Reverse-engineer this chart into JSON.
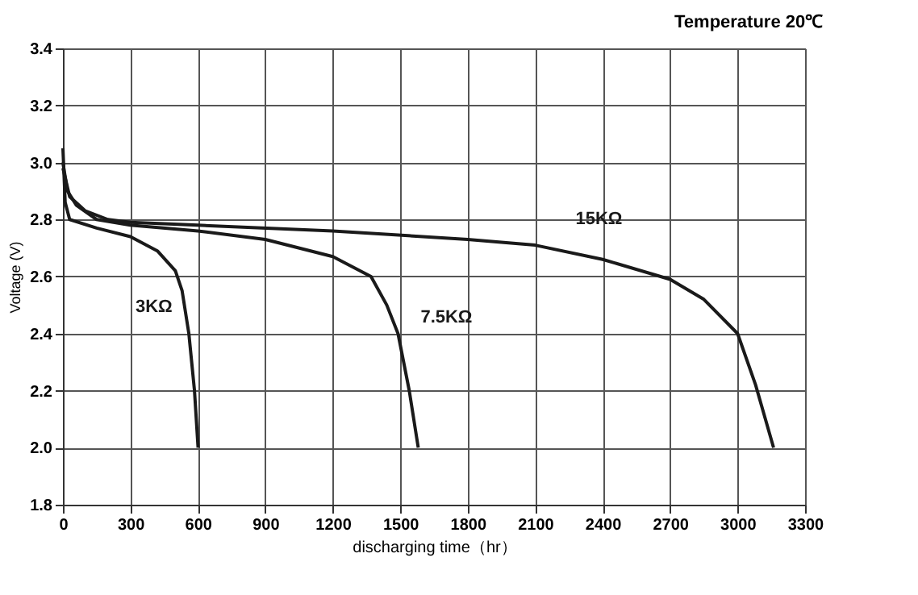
{
  "chart_data": {
    "type": "line",
    "title": "Temperature 20℃",
    "xlabel": "discharging time（hr）",
    "ylabel": "Voltage (V)",
    "xlim": [
      0,
      3300
    ],
    "xticks": [
      0,
      300,
      600,
      900,
      1200,
      1500,
      1800,
      2100,
      2400,
      2700,
      3000,
      3300
    ],
    "ylim": [
      1.8,
      3.4
    ],
    "yticks": [
      1.8,
      {
        "value": 2.0,
        "label": "2.0"
      },
      2.2,
      2.4,
      2.6,
      2.8,
      {
        "value": 3.0,
        "label": "3.0"
      },
      3.2,
      3.4
    ],
    "grid": true,
    "legend": false,
    "marker": "none",
    "line_style": "solid",
    "series": [
      {
        "name": "3KΩ",
        "color": "#1a1a1a",
        "x": [
          0,
          10,
          30,
          150,
          300,
          420,
          500,
          530,
          560,
          585,
          601
        ],
        "values": [
          3.05,
          2.86,
          2.8,
          2.77,
          2.74,
          2.69,
          2.62,
          2.55,
          2.4,
          2.2,
          2.0
        ]
      },
      {
        "name": "7.5KΩ",
        "color": "#1a1a1a",
        "x": [
          0,
          20,
          60,
          150,
          300,
          600,
          900,
          1200,
          1370,
          1440,
          1490,
          1540,
          1580
        ],
        "values": [
          3.0,
          2.9,
          2.85,
          2.8,
          2.78,
          2.76,
          2.73,
          2.67,
          2.6,
          2.5,
          2.4,
          2.2,
          2.0
        ]
      },
      {
        "name": "15KΩ",
        "color": "#1a1a1a",
        "x": [
          0,
          30,
          100,
          200,
          300,
          600,
          1200,
          1800,
          2100,
          2400,
          2700,
          2850,
          3000,
          3080,
          3160
        ],
        "values": [
          2.98,
          2.88,
          2.83,
          2.8,
          2.79,
          2.78,
          2.76,
          2.73,
          2.71,
          2.66,
          2.59,
          2.52,
          2.4,
          2.22,
          2.0
        ]
      }
    ]
  }
}
